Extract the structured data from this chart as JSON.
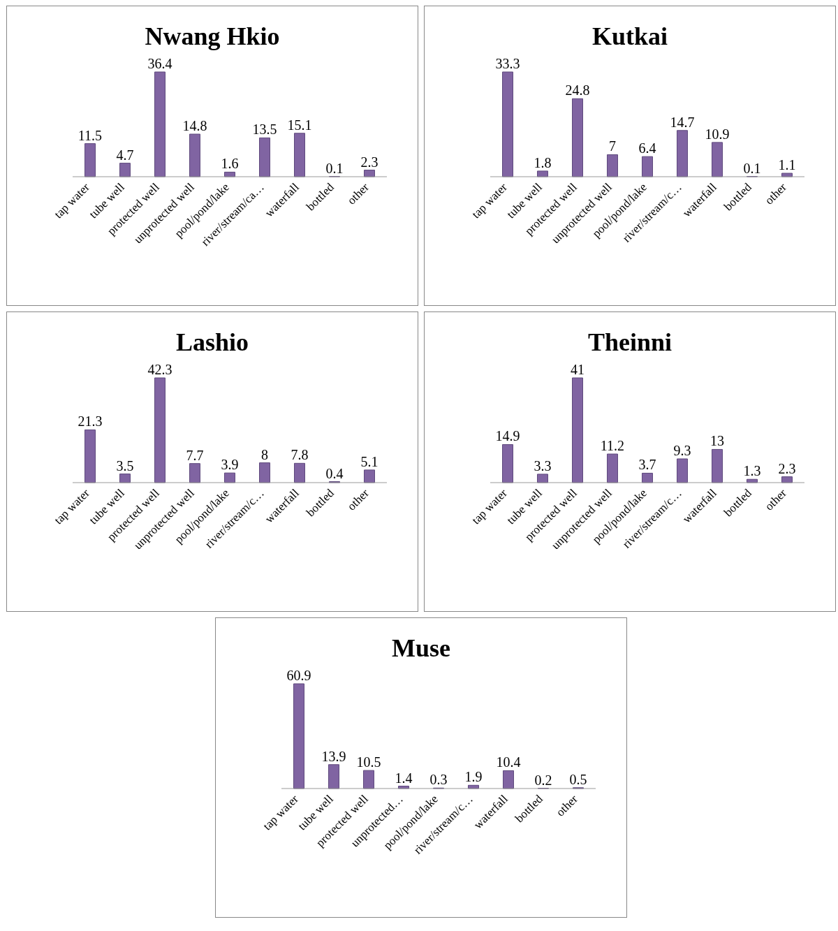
{
  "chart_data": [
    {
      "type": "bar",
      "title": "Nwang Hkio",
      "categories": [
        "tap water",
        "tube well",
        "protected well",
        "unprotected well",
        "pool/pond/lake",
        "river/stream/ca…",
        "waterfall",
        "bottled",
        "other"
      ],
      "values": [
        11.5,
        4.7,
        36.4,
        14.8,
        1.6,
        13.5,
        15.1,
        0.1,
        2.3
      ],
      "color": "#8064a2",
      "data_labels": true
    },
    {
      "type": "bar",
      "title": "Kutkai",
      "categories": [
        "tap water",
        "tube well",
        "protected well",
        "unprotected well",
        "pool/pond/lake",
        "river/stream/c…",
        "waterfall",
        "bottled",
        "other"
      ],
      "values": [
        33.3,
        1.8,
        24.8,
        7,
        6.4,
        14.7,
        10.9,
        0.1,
        1.1
      ],
      "color": "#8064a2",
      "data_labels": true
    },
    {
      "type": "bar",
      "title": "Lashio",
      "categories": [
        "tap water",
        "tube well",
        "protected well",
        "unprotected well",
        "pool/pond/lake",
        "river/stream/c…",
        "waterfall",
        "bottled",
        "other"
      ],
      "values": [
        21.3,
        3.5,
        42.3,
        7.7,
        3.9,
        8,
        7.8,
        0.4,
        5.1
      ],
      "color": "#8064a2",
      "data_labels": true
    },
    {
      "type": "bar",
      "title": "Theinni",
      "categories": [
        "tap water",
        "tube well",
        "protected well",
        "unprotected well",
        "pool/pond/lake",
        "river/stream/c…",
        "waterfall",
        "bottled",
        "other"
      ],
      "values": [
        14.9,
        3.3,
        41,
        11.2,
        3.7,
        9.3,
        13,
        1.3,
        2.3
      ],
      "color": "#8064a2",
      "data_labels": true
    },
    {
      "type": "bar",
      "title": "Muse",
      "categories": [
        "tap water",
        "tube well",
        "protected well",
        "unprotected…",
        "pool/pond/lake",
        "river/stream/c…",
        "waterfall",
        "bottled",
        "other"
      ],
      "values": [
        60.9,
        13.9,
        10.5,
        1.4,
        0.3,
        1.9,
        10.4,
        0.2,
        0.5
      ],
      "color": "#8064a2",
      "data_labels": true
    }
  ]
}
